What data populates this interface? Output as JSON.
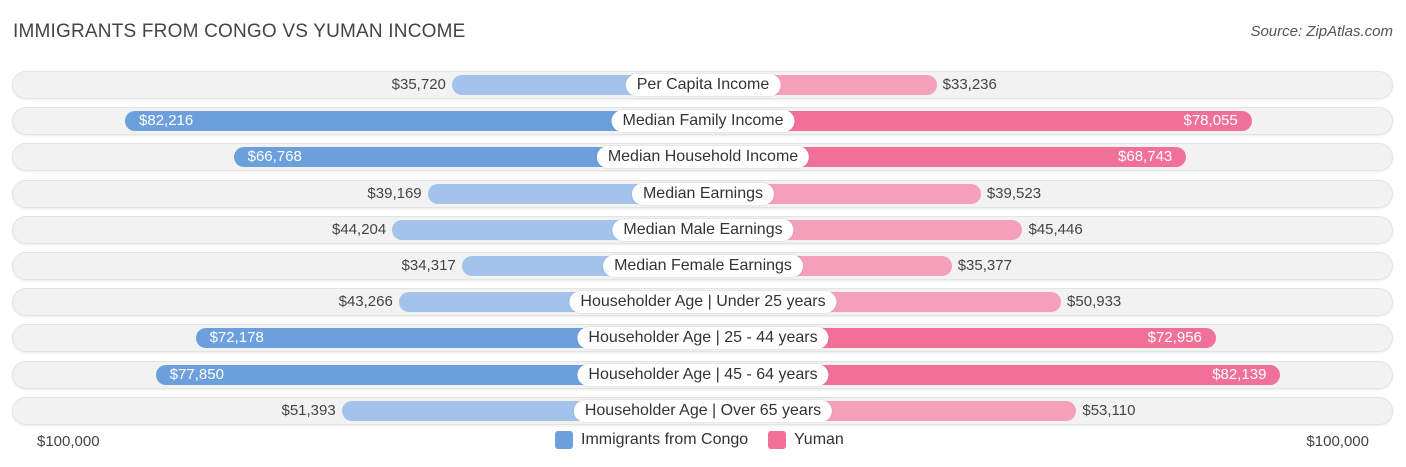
{
  "title": "IMMIGRANTS FROM CONGO VS YUMAN INCOME",
  "source": "Source: ZipAtlas.com",
  "colors": {
    "left_light": "#a3c3ea",
    "left_strong": "#6ba0dc",
    "right_light": "#f5a0bb",
    "right_strong": "#f07098"
  },
  "chart_data": {
    "type": "bar",
    "orientation": "horizontal-diverging",
    "categories": [
      "Per Capita Income",
      "Median Family Income",
      "Median Household Income",
      "Median Earnings",
      "Median Male Earnings",
      "Median Female Earnings",
      "Householder Age | Under 25 years",
      "Householder Age | 25 - 44 years",
      "Householder Age | 45 - 64 years",
      "Householder Age | Over 65 years"
    ],
    "series": [
      {
        "name": "Immigrants from Congo",
        "values": [
          35720,
          82216,
          66768,
          39169,
          44204,
          34317,
          43266,
          72178,
          77850,
          51393
        ],
        "labels": [
          "$35,720",
          "$82,216",
          "$66,768",
          "$39,169",
          "$44,204",
          "$34,317",
          "$43,266",
          "$72,178",
          "$77,850",
          "$51,393"
        ]
      },
      {
        "name": "Yuman",
        "values": [
          33236,
          78055,
          68743,
          39523,
          45446,
          35377,
          50933,
          72956,
          82139,
          53110
        ],
        "labels": [
          "$33,236",
          "$78,055",
          "$68,743",
          "$39,523",
          "$45,446",
          "$35,377",
          "$50,933",
          "$72,956",
          "$82,139",
          "$53,110"
        ]
      }
    ],
    "xlim": [
      0,
      100000
    ],
    "axis_labels": {
      "left": "$100,000",
      "right": "$100,000"
    },
    "legend_position": "bottom-center"
  }
}
